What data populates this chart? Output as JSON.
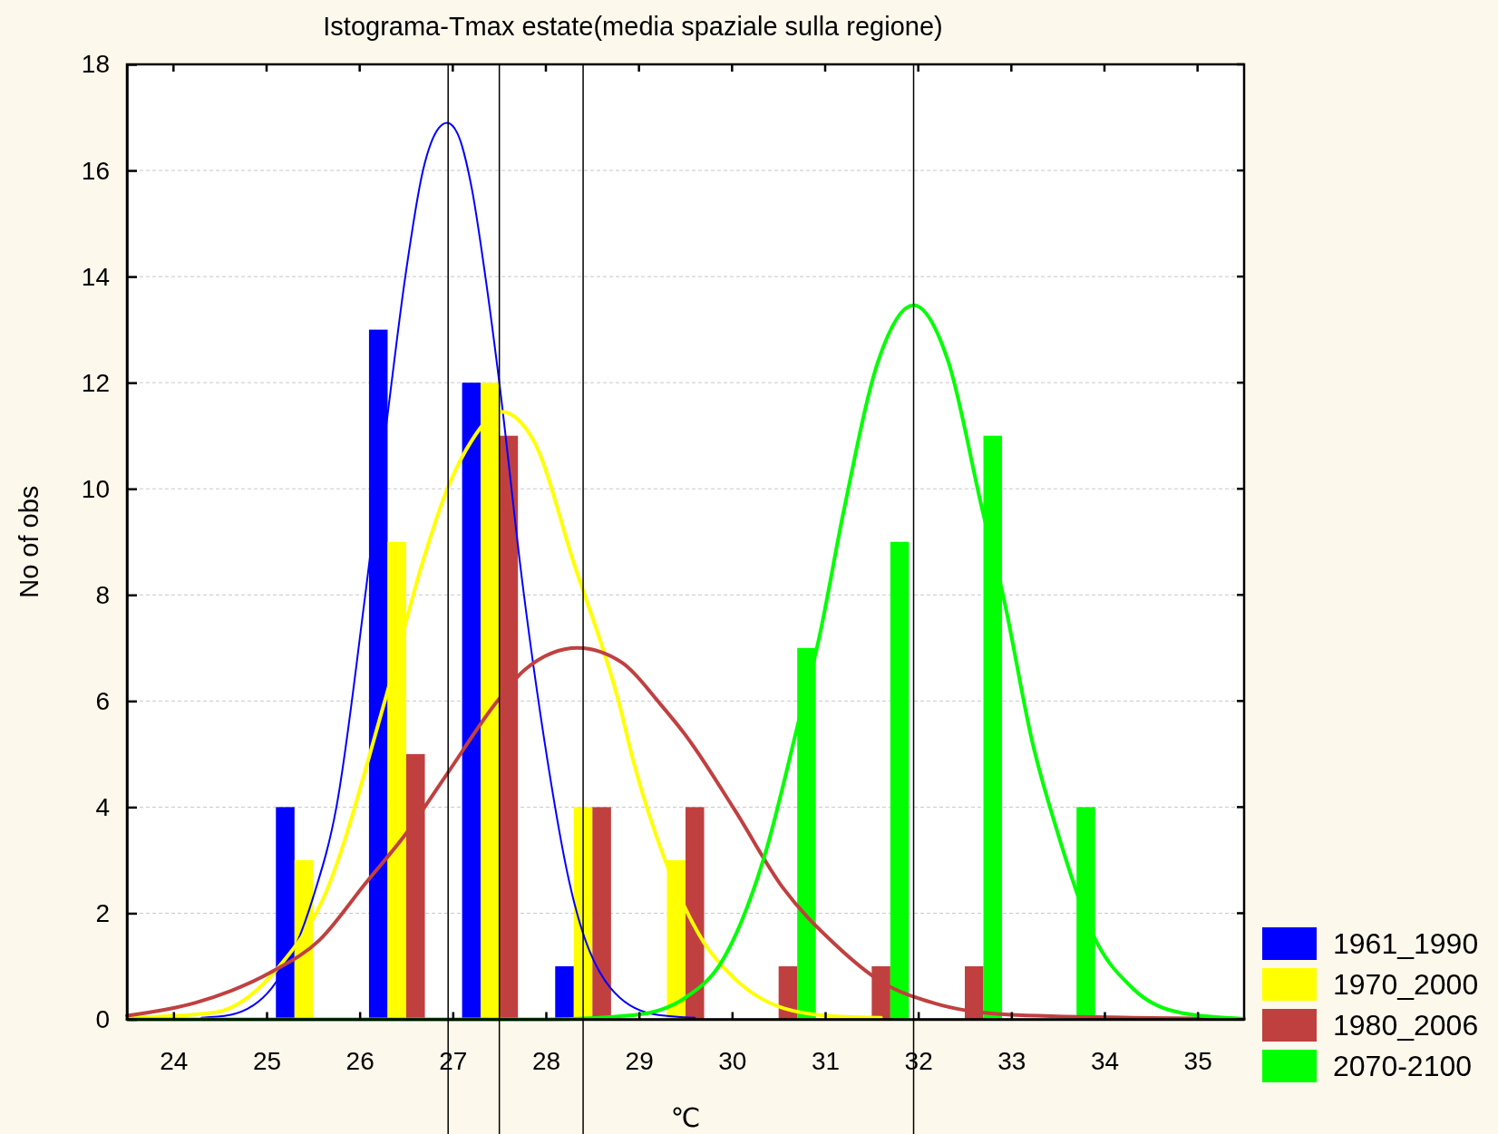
{
  "chart_data": {
    "type": "bar",
    "title": "Istograma-Tmax estate(media spaziale sulla regione)",
    "xlabel": "℃",
    "ylabel": "No of obs",
    "x": [
      25.5,
      26.5,
      27.5,
      28.5,
      29.5,
      30.5,
      31.5,
      32.5,
      33.5
    ],
    "series": [
      {
        "name": "1961_1990",
        "color": "#0000ff",
        "values": [
          4,
          13,
          12,
          1,
          null,
          null,
          null,
          null,
          null
        ]
      },
      {
        "name": "1970_2000",
        "color": "#ffff00",
        "values": [
          3,
          9,
          12,
          4,
          3,
          null,
          null,
          null,
          null
        ]
      },
      {
        "name": "1980_2006",
        "color": "#c04040",
        "values": [
          null,
          5,
          11,
          4,
          4,
          1,
          1,
          1,
          null
        ]
      },
      {
        "name": "2070-2100",
        "color": "#00ff00",
        "values": [
          null,
          null,
          null,
          null,
          null,
          7,
          9,
          11,
          4
        ]
      },
      {
        "type": "line",
        "color": "#0000ff",
        "x": [
          24.3,
          24.6,
          25.06,
          25.5,
          25.75,
          26.06,
          26.3,
          26.49,
          26.68,
          26.85,
          26.94,
          27.05,
          27.2,
          27.35,
          27.5,
          27.75,
          27.98,
          28.25,
          28.69,
          29.15,
          29.6
        ],
        "values": [
          0.03,
          0.08,
          0.6,
          2.3,
          4.0,
          8.0,
          11.4,
          14.0,
          16.0,
          16.8,
          16.9,
          16.7,
          15.7,
          14.0,
          12.0,
          8.2,
          5.3,
          2.6,
          0.6,
          0.1,
          0.03
        ]
      },
      {
        "type": "line",
        "color": "#ffff00",
        "x": [
          23.5,
          24.44,
          25.15,
          25.61,
          26.27,
          26.68,
          26.9,
          27.2,
          27.52,
          27.87,
          28.3,
          28.78,
          28.95,
          29.28,
          29.7,
          30.02,
          30.55,
          31.08,
          31.6
        ],
        "values": [
          0.03,
          0.13,
          1.03,
          2.28,
          6.0,
          8.64,
          9.81,
          10.9,
          11.45,
          10.9,
          8.6,
          6.0,
          4.8,
          3.0,
          1.44,
          0.78,
          0.21,
          0.06,
          0.03
        ]
      },
      {
        "type": "line",
        "color": "#c04040",
        "x": [
          23.5,
          24.23,
          25.06,
          25.56,
          26.07,
          26.48,
          26.94,
          27.48,
          27.78,
          28.34,
          28.82,
          29.23,
          29.49,
          30.02,
          30.55,
          31.09,
          31.62,
          32.16,
          32.96,
          34.3,
          35.5
        ],
        "values": [
          0.07,
          0.31,
          0.9,
          1.48,
          2.58,
          3.46,
          4.63,
          6.0,
          6.6,
          7.0,
          6.72,
          5.94,
          5.38,
          3.97,
          2.47,
          1.44,
          0.69,
          0.31,
          0.09,
          0.03,
          0.01
        ]
      },
      {
        "type": "line",
        "color": "#00ff00",
        "x": [
          23.5,
          28,
          28.95,
          29.49,
          29.91,
          30.34,
          30.72,
          30.93,
          31.2,
          31.57,
          31.95,
          32.32,
          32.69,
          32.91,
          33.23,
          33.5,
          33.87,
          34.3,
          34.83,
          35.5
        ],
        "values": [
          0,
          0,
          0.08,
          0.4,
          1.15,
          3.03,
          5.65,
          7.15,
          9.59,
          12.41,
          13.46,
          12.41,
          9.59,
          8.0,
          5.19,
          3.5,
          1.62,
          0.59,
          0.12,
          0.01
        ]
      }
    ],
    "xlim": [
      23.5,
      35.5
    ],
    "xticks": [
      24,
      25,
      26,
      27,
      28,
      29,
      30,
      31,
      32,
      33,
      34,
      35
    ],
    "ylim": [
      0,
      18
    ],
    "yticks": [
      0,
      2,
      4,
      6,
      8,
      10,
      12,
      14,
      16,
      18
    ],
    "grid": "y",
    "legend": "bottom right",
    "ref_lines": [
      {
        "axis": "x",
        "value": 26.95,
        "color": "#000000"
      },
      {
        "axis": "x",
        "value": 27.5,
        "color": "#000000"
      },
      {
        "axis": "x",
        "value": 28.4,
        "color": "#000000"
      },
      {
        "axis": "x",
        "value": 31.95,
        "color": "#000000"
      }
    ]
  }
}
